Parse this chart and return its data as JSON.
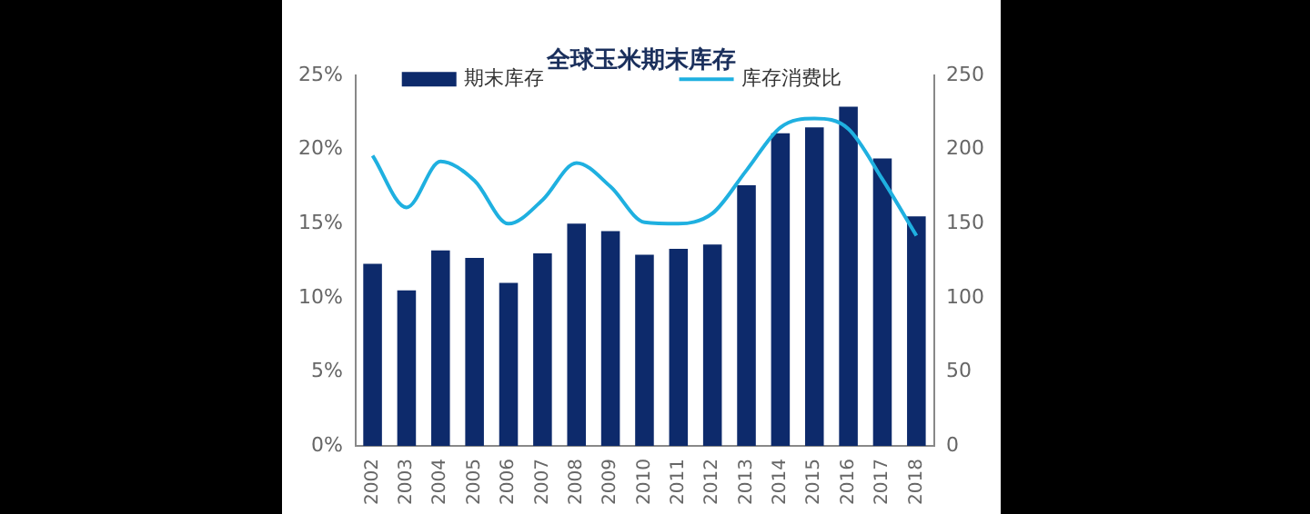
{
  "chart_data": {
    "type": "bar",
    "title": "全球玉米期末库存",
    "categories": [
      "2002",
      "2003",
      "2004",
      "2005",
      "2006",
      "2007",
      "2008",
      "2009",
      "2010",
      "2011",
      "2012",
      "2013",
      "2014",
      "2015",
      "2016",
      "2017",
      "2018"
    ],
    "series": [
      {
        "name": "期末库存",
        "type": "bar",
        "color": "#0d2a6b",
        "axis": "y2",
        "values": [
          123,
          105,
          132,
          127,
          110,
          130,
          150,
          145,
          129,
          133,
          136,
          176,
          211,
          215,
          229,
          194,
          155
        ]
      },
      {
        "name": "库存消费比",
        "type": "line",
        "color": "#1fb0e0",
        "values": [
          19.6,
          16.1,
          19.2,
          17.9,
          15.0,
          16.6,
          19.1,
          17.5,
          15.1,
          15.0,
          15.7,
          18.6,
          21.5,
          22.1,
          21.4,
          18.0,
          14.2
        ]
      }
    ],
    "ylim": [
      0,
      25
    ],
    "yticks": [
      {
        "value": 0,
        "label": "0%"
      },
      {
        "value": 5,
        "label": "5%"
      },
      {
        "value": 10,
        "label": "10%"
      },
      {
        "value": 15,
        "label": "15%"
      },
      {
        "value": 20,
        "label": "20%"
      },
      {
        "value": 25,
        "label": "25%"
      }
    ],
    "y2lim": [
      0,
      250
    ],
    "y2ticks": [
      0,
      50,
      100,
      150,
      200,
      250
    ],
    "grid": false,
    "legend": "top",
    "marker": "none"
  }
}
